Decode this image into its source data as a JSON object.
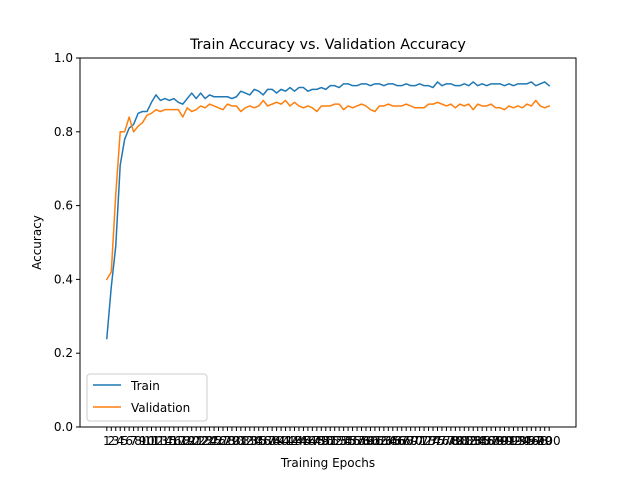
{
  "chart_data": {
    "type": "line",
    "title": "Train Accuracy vs. Validation Accuracy",
    "xlabel": "Training Epochs",
    "ylabel": "Accuracy",
    "xlim": [
      -5,
      106
    ],
    "ylim": [
      0.0,
      1.0
    ],
    "y_ticks": [
      "0.0",
      "0.2",
      "0.4",
      "0.6",
      "0.8",
      "1.0"
    ],
    "x_tick_labels": [
      "1",
      "2",
      "3",
      "4",
      "5",
      "6",
      "7",
      "8",
      "9",
      "10",
      "11",
      "12",
      "13",
      "14",
      "15",
      "16",
      "17",
      "18",
      "19",
      "20",
      "21",
      "22",
      "23",
      "24",
      "25",
      "26",
      "27",
      "28",
      "29",
      "30",
      "31",
      "32",
      "33",
      "34",
      "35",
      "36",
      "37",
      "38",
      "39",
      "40",
      "41",
      "42",
      "43",
      "44",
      "45",
      "46",
      "47",
      "48",
      "49",
      "50",
      "51",
      "52",
      "53",
      "54",
      "55",
      "56",
      "57",
      "58",
      "59",
      "60",
      "61",
      "62",
      "63",
      "64",
      "65",
      "66",
      "67",
      "68",
      "69",
      "70",
      "71",
      "72",
      "73",
      "74",
      "75",
      "76",
      "77",
      "78",
      "79",
      "80",
      "81",
      "82",
      "83",
      "84",
      "85",
      "86",
      "87",
      "88",
      "89",
      "90",
      "91",
      "92",
      "93",
      "94",
      "95",
      "96",
      "97",
      "98",
      "99",
      "100"
    ],
    "grid": false,
    "legend": "lower-left",
    "series": [
      {
        "name": "Train",
        "color": "#1f77b4",
        "values": [
          0.24,
          0.38,
          0.49,
          0.71,
          0.78,
          0.81,
          0.82,
          0.85,
          0.855,
          0.855,
          0.88,
          0.9,
          0.885,
          0.89,
          0.885,
          0.89,
          0.88,
          0.875,
          0.89,
          0.905,
          0.89,
          0.905,
          0.89,
          0.9,
          0.895,
          0.895,
          0.895,
          0.895,
          0.89,
          0.895,
          0.91,
          0.905,
          0.9,
          0.915,
          0.91,
          0.9,
          0.915,
          0.915,
          0.905,
          0.915,
          0.91,
          0.92,
          0.91,
          0.92,
          0.92,
          0.91,
          0.915,
          0.915,
          0.92,
          0.915,
          0.925,
          0.925,
          0.92,
          0.93,
          0.93,
          0.925,
          0.925,
          0.93,
          0.93,
          0.925,
          0.93,
          0.93,
          0.925,
          0.93,
          0.93,
          0.925,
          0.925,
          0.93,
          0.925,
          0.925,
          0.93,
          0.925,
          0.925,
          0.92,
          0.935,
          0.925,
          0.93,
          0.93,
          0.925,
          0.925,
          0.93,
          0.925,
          0.935,
          0.925,
          0.93,
          0.925,
          0.93,
          0.93,
          0.93,
          0.925,
          0.93,
          0.925,
          0.93,
          0.93,
          0.93,
          0.935,
          0.925,
          0.93,
          0.935,
          0.925
        ]
      },
      {
        "name": "Validation",
        "color": "#ff7f0e",
        "values": [
          0.4,
          0.42,
          0.63,
          0.8,
          0.8,
          0.84,
          0.8,
          0.815,
          0.825,
          0.845,
          0.85,
          0.86,
          0.855,
          0.86,
          0.86,
          0.86,
          0.86,
          0.84,
          0.865,
          0.855,
          0.86,
          0.87,
          0.865,
          0.875,
          0.87,
          0.865,
          0.86,
          0.875,
          0.87,
          0.87,
          0.855,
          0.865,
          0.87,
          0.865,
          0.87,
          0.885,
          0.87,
          0.875,
          0.88,
          0.875,
          0.885,
          0.87,
          0.88,
          0.87,
          0.865,
          0.87,
          0.865,
          0.855,
          0.87,
          0.87,
          0.87,
          0.875,
          0.875,
          0.86,
          0.87,
          0.865,
          0.87,
          0.875,
          0.87,
          0.86,
          0.855,
          0.87,
          0.87,
          0.875,
          0.87,
          0.87,
          0.87,
          0.875,
          0.87,
          0.865,
          0.865,
          0.865,
          0.875,
          0.875,
          0.88,
          0.875,
          0.87,
          0.875,
          0.865,
          0.875,
          0.87,
          0.875,
          0.86,
          0.875,
          0.87,
          0.87,
          0.875,
          0.865,
          0.865,
          0.86,
          0.87,
          0.865,
          0.87,
          0.865,
          0.875,
          0.87,
          0.885,
          0.87,
          0.865,
          0.87
        ]
      }
    ]
  }
}
